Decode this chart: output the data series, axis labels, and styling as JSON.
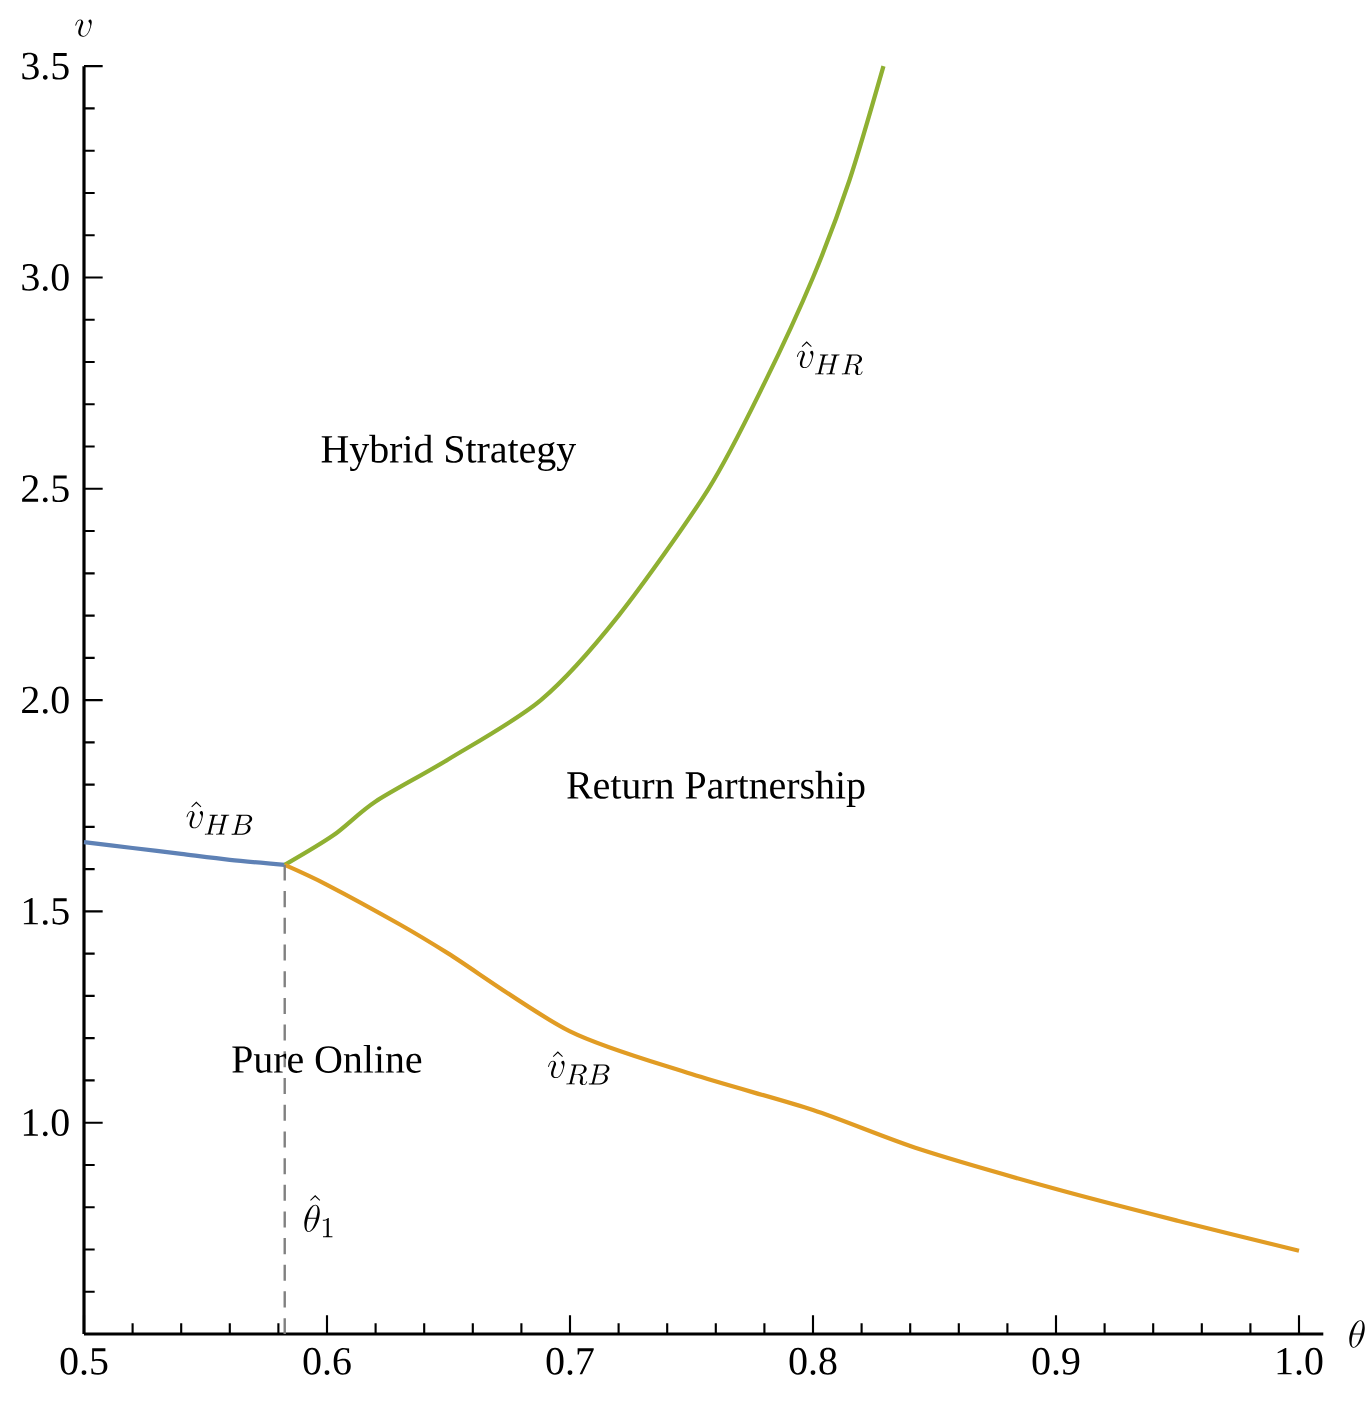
{
  "chart_data": {
    "type": "line",
    "xlabel": "\\theta",
    "ylabel": "v",
    "xlim": [
      0.5,
      1.01
    ],
    "ylim": [
      0.5,
      3.5
    ],
    "xticks": [
      0.5,
      0.6,
      0.7,
      0.8,
      0.9,
      {
        "value": 1.0,
        "label": "1.0"
      }
    ],
    "yticks": [
      {
        "value": 0.5,
        "label": null
      },
      {
        "value": 1.0,
        "label": "1.0"
      },
      1.5,
      {
        "value": 2.0,
        "label": "2.0"
      },
      2.5,
      {
        "value": 3.0,
        "label": "3.0"
      },
      3.5
    ],
    "marker": "none",
    "series": [
      {
        "name": "\\hat{v}_{HB}",
        "color": "#5e81b5",
        "x": [
          0.5,
          0.52,
          0.54,
          0.56,
          0.5826
        ],
        "values": [
          1.664,
          1.65,
          1.636,
          1.622,
          1.61
        ]
      },
      {
        "name": "\\hat{v}_{HR}",
        "color": "#8fb032",
        "x": [
          0.5826,
          0.6026,
          0.62,
          0.65,
          0.688,
          0.72,
          0.757,
          0.78,
          0.8,
          0.815,
          0.829
        ],
        "values": [
          1.61,
          1.68,
          1.76,
          1.86,
          2.0,
          2.2,
          2.5,
          2.75,
          3.0,
          3.23,
          3.5
        ]
      },
      {
        "name": "\\hat{v}_{RB}",
        "color": "#e19c24",
        "x": [
          0.5826,
          0.6,
          0.63,
          0.65,
          0.7,
          0.75,
          0.8,
          0.844,
          0.9,
          0.95,
          1.0
        ],
        "values": [
          1.61,
          1.563,
          1.469,
          1.4,
          1.216,
          1.115,
          1.03,
          0.937,
          0.843,
          0.768,
          0.697
        ]
      },
      {
        "color": "#808080",
        "line_style": "dashed",
        "x": [
          0.5826,
          0.5826
        ],
        "values": [
          0.5,
          1.61
        ]
      }
    ],
    "annotations": [
      "Hybrid Strategy",
      "Return Partnership",
      "Pure Online",
      "\\hat{\\theta}_1"
    ]
  }
}
